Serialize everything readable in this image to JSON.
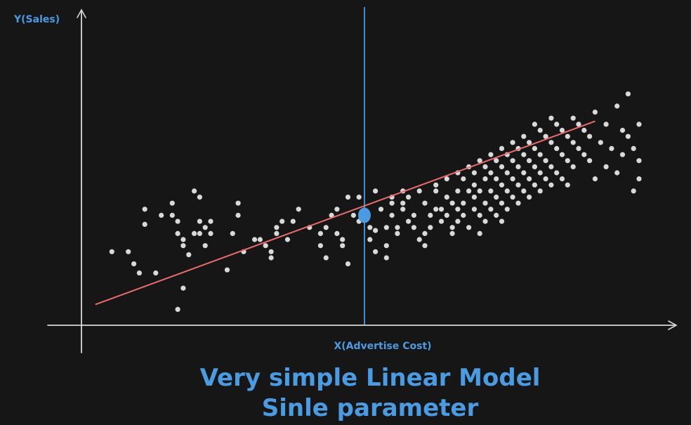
{
  "colors": {
    "background": "#161616",
    "axis": "#d8d8d8",
    "points": "#d9d9d9",
    "fit_line": "#e96d6d",
    "accent": "#4a9be2"
  },
  "y_axis_label": "Y(Sales)",
  "x_axis_label": "X(Advertise Cost)",
  "title": {
    "line1": "Very simple Linear Model",
    "line2": "Sinle parameter"
  },
  "chart_data": {
    "type": "scatter",
    "xlabel": "X(Advertise Cost)",
    "ylabel": "Y(Sales)",
    "xlim": [
      0,
      100
    ],
    "ylim": [
      0,
      100
    ],
    "grid": false,
    "legend": "none",
    "fit_line": {
      "x": [
        1,
        92
      ],
      "y": [
        6.6,
        67
      ]
    },
    "marker_x": 50,
    "highlight_point": {
      "x": 50,
      "y": 36
    },
    "points": [
      [
        4,
        24
      ],
      [
        7,
        24
      ],
      [
        8,
        20
      ],
      [
        9,
        17
      ],
      [
        10,
        38
      ],
      [
        10,
        33
      ],
      [
        12,
        17
      ],
      [
        13,
        36
      ],
      [
        15,
        40
      ],
      [
        15,
        36
      ],
      [
        16,
        34
      ],
      [
        16,
        30
      ],
      [
        17,
        28
      ],
      [
        17,
        26
      ],
      [
        16,
        5
      ],
      [
        17,
        12
      ],
      [
        18,
        23
      ],
      [
        19,
        30
      ],
      [
        20,
        34
      ],
      [
        20,
        30
      ],
      [
        19,
        44
      ],
      [
        20,
        42
      ],
      [
        21,
        32
      ],
      [
        21,
        26
      ],
      [
        22,
        34
      ],
      [
        22,
        30
      ],
      [
        25,
        18
      ],
      [
        26,
        30
      ],
      [
        27,
        36
      ],
      [
        27,
        40
      ],
      [
        28,
        24
      ],
      [
        30,
        28
      ],
      [
        31,
        28
      ],
      [
        32,
        26
      ],
      [
        33,
        22
      ],
      [
        33,
        24
      ],
      [
        34,
        32
      ],
      [
        34,
        30
      ],
      [
        35,
        34
      ],
      [
        36,
        28
      ],
      [
        37,
        34
      ],
      [
        38,
        38
      ],
      [
        40,
        32
      ],
      [
        42,
        30
      ],
      [
        43,
        32
      ],
      [
        42,
        26
      ],
      [
        43,
        22
      ],
      [
        44,
        36
      ],
      [
        45,
        38
      ],
      [
        45,
        30
      ],
      [
        46,
        28
      ],
      [
        46,
        26
      ],
      [
        47,
        42
      ],
      [
        47,
        20
      ],
      [
        48,
        36
      ],
      [
        49,
        34
      ],
      [
        49,
        42
      ],
      [
        50,
        36
      ],
      [
        51,
        32
      ],
      [
        51,
        28
      ],
      [
        52,
        24
      ],
      [
        52,
        44
      ],
      [
        52,
        31
      ],
      [
        53,
        38
      ],
      [
        54,
        32
      ],
      [
        54,
        26
      ],
      [
        54,
        22
      ],
      [
        55,
        40
      ],
      [
        55,
        42
      ],
      [
        55,
        36
      ],
      [
        56,
        30
      ],
      [
        56,
        32
      ],
      [
        57,
        44
      ],
      [
        57,
        40
      ],
      [
        57,
        38
      ],
      [
        58,
        42
      ],
      [
        58,
        34
      ],
      [
        59,
        36
      ],
      [
        59,
        32
      ],
      [
        60,
        44
      ],
      [
        60,
        28
      ],
      [
        61,
        40
      ],
      [
        61,
        30
      ],
      [
        61,
        26
      ],
      [
        62,
        36
      ],
      [
        62,
        32
      ],
      [
        63,
        46
      ],
      [
        63,
        44
      ],
      [
        63,
        38
      ],
      [
        64,
        38
      ],
      [
        64,
        34
      ],
      [
        65,
        48
      ],
      [
        65,
        42
      ],
      [
        65,
        36
      ],
      [
        66,
        40
      ],
      [
        66,
        32
      ],
      [
        66,
        30
      ],
      [
        67,
        50
      ],
      [
        67,
        44
      ],
      [
        67,
        38
      ],
      [
        67,
        34
      ],
      [
        68,
        48
      ],
      [
        68,
        40
      ],
      [
        68,
        36
      ],
      [
        69,
        52
      ],
      [
        69,
        44
      ],
      [
        69,
        32
      ],
      [
        70,
        50
      ],
      [
        70,
        46
      ],
      [
        70,
        42
      ],
      [
        70,
        38
      ],
      [
        71,
        54
      ],
      [
        71,
        44
      ],
      [
        71,
        36
      ],
      [
        71,
        30
      ],
      [
        72,
        52
      ],
      [
        72,
        48
      ],
      [
        72,
        40
      ],
      [
        72,
        34
      ],
      [
        73,
        56
      ],
      [
        73,
        50
      ],
      [
        73,
        44
      ],
      [
        73,
        38
      ],
      [
        74,
        54
      ],
      [
        74,
        48
      ],
      [
        74,
        42
      ],
      [
        74,
        36
      ],
      [
        75,
        58
      ],
      [
        75,
        52
      ],
      [
        75,
        46
      ],
      [
        75,
        40
      ],
      [
        75,
        34
      ],
      [
        76,
        56
      ],
      [
        76,
        50
      ],
      [
        76,
        44
      ],
      [
        76,
        38
      ],
      [
        77,
        60
      ],
      [
        77,
        54
      ],
      [
        77,
        48
      ],
      [
        77,
        42
      ],
      [
        78,
        58
      ],
      [
        78,
        52
      ],
      [
        78,
        46
      ],
      [
        78,
        40
      ],
      [
        79,
        62
      ],
      [
        79,
        56
      ],
      [
        79,
        50
      ],
      [
        79,
        44
      ],
      [
        80,
        60
      ],
      [
        80,
        54
      ],
      [
        80,
        48
      ],
      [
        80,
        42
      ],
      [
        81,
        66
      ],
      [
        81,
        58
      ],
      [
        81,
        52
      ],
      [
        81,
        46
      ],
      [
        82,
        64
      ],
      [
        82,
        56
      ],
      [
        82,
        50
      ],
      [
        82,
        44
      ],
      [
        83,
        62
      ],
      [
        83,
        54
      ],
      [
        83,
        48
      ],
      [
        84,
        68
      ],
      [
        84,
        60
      ],
      [
        84,
        52
      ],
      [
        84,
        46
      ],
      [
        85,
        66
      ],
      [
        85,
        58
      ],
      [
        85,
        50
      ],
      [
        86,
        64
      ],
      [
        86,
        56
      ],
      [
        86,
        48
      ],
      [
        87,
        62
      ],
      [
        87,
        54
      ],
      [
        87,
        46
      ],
      [
        88,
        68
      ],
      [
        88,
        60
      ],
      [
        88,
        52
      ],
      [
        89,
        66
      ],
      [
        89,
        58
      ],
      [
        90,
        64
      ],
      [
        90,
        56
      ],
      [
        91,
        62
      ],
      [
        91,
        54
      ],
      [
        92,
        70
      ],
      [
        92,
        48
      ],
      [
        93,
        60
      ],
      [
        94,
        66
      ],
      [
        94,
        52
      ],
      [
        95,
        58
      ],
      [
        96,
        72
      ],
      [
        96,
        50
      ],
      [
        97,
        64
      ],
      [
        97,
        56
      ],
      [
        98,
        76
      ],
      [
        98,
        62
      ],
      [
        99,
        58
      ],
      [
        99,
        44
      ],
      [
        100,
        54
      ],
      [
        100,
        48
      ],
      [
        100,
        66
      ]
    ]
  }
}
